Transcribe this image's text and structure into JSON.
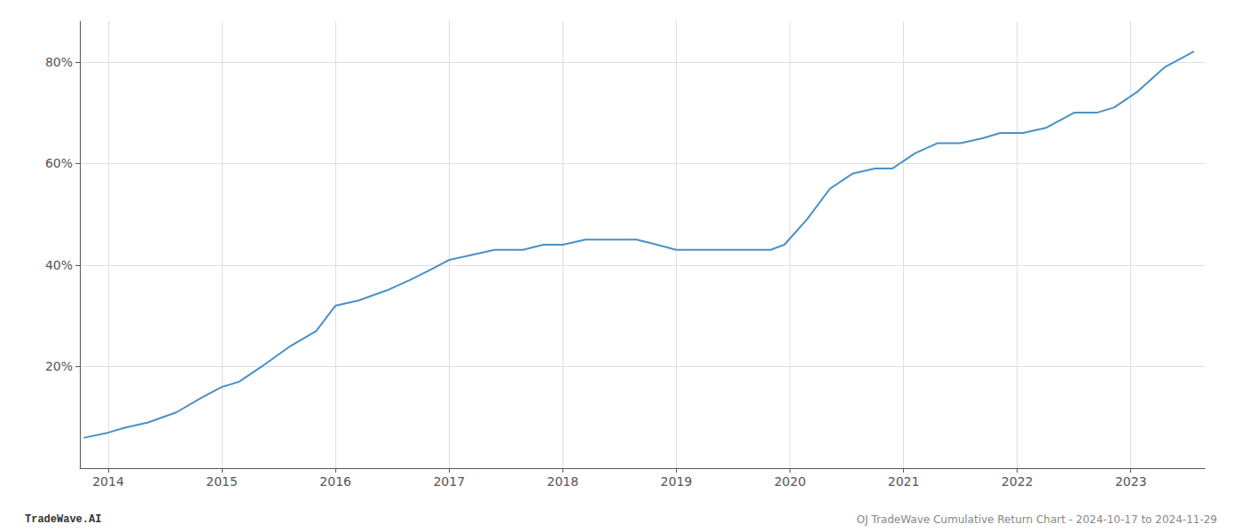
{
  "chart_data": {
    "type": "line",
    "annotations": [
      "TradeWave.AI",
      "OJ TradeWave Cumulative Return Chart - 2024-10-17 to 2024-11-29"
    ],
    "x": [
      2013.79,
      2014.0,
      2014.15,
      2014.35,
      2014.6,
      2014.83,
      2015.0,
      2015.15,
      2015.35,
      2015.6,
      2015.83,
      2016.0,
      2016.2,
      2016.45,
      2016.65,
      2016.83,
      2017.0,
      2017.2,
      2017.4,
      2017.65,
      2017.83,
      2018.0,
      2018.2,
      2018.4,
      2018.65,
      2018.83,
      2019.0,
      2019.2,
      2019.4,
      2019.65,
      2019.83,
      2019.95,
      2020.15,
      2020.35,
      2020.55,
      2020.75,
      2020.9,
      2021.1,
      2021.3,
      2021.5,
      2021.7,
      2021.85,
      2022.05,
      2022.25,
      2022.5,
      2022.7,
      2022.85,
      2023.05,
      2023.3,
      2023.55
    ],
    "values": [
      6,
      7,
      8,
      9,
      11,
      14,
      16,
      17,
      20,
      24,
      27,
      32,
      33,
      35,
      37,
      39,
      41,
      42,
      43,
      43,
      44,
      44,
      45,
      45,
      45,
      44,
      43,
      43,
      43,
      43,
      43,
      44,
      49,
      55,
      58,
      59,
      59,
      62,
      64,
      64,
      65,
      66,
      66,
      67,
      70,
      70,
      71,
      74,
      79,
      82
    ],
    "color": "#4a90c4",
    "xlim": [
      2013.75,
      2023.65
    ],
    "xticks": [
      2014,
      2015,
      2016,
      2017,
      2018,
      2019,
      2020,
      2021,
      2022,
      2023
    ],
    "ylim": [
      0,
      88
    ],
    "yticks": [
      {
        "value": 20,
        "label": "20%"
      },
      {
        "value": 40,
        "label": "40%"
      },
      {
        "value": 60,
        "label": "60%"
      },
      {
        "value": 80,
        "label": "80%"
      }
    ],
    "grid": true
  }
}
